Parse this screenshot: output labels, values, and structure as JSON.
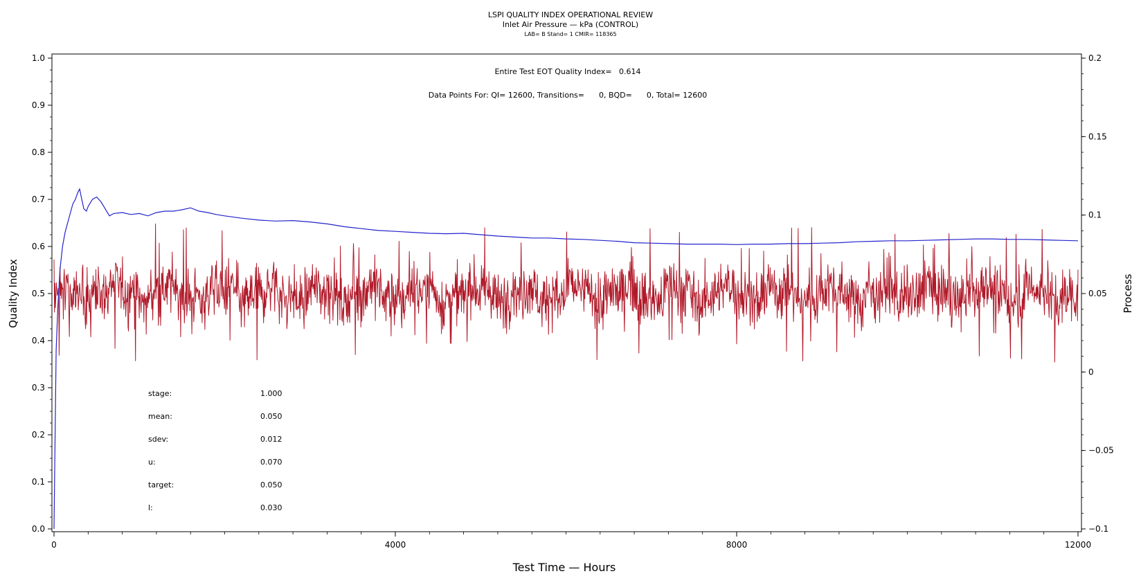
{
  "chart_data": {
    "type": "line",
    "title": "LSPI QUALITY INDEX OPERATIONAL REVIEW",
    "subtitle": "Inlet Air Pressure — kPa (CONTROL)",
    "subtitle2": "LAB= B Stand= 1 CMIR= 118365",
    "xlabel": "Test Time — Hours",
    "ylabel_left": "Quality Index",
    "ylabel_right": "Process",
    "xlim": [
      0,
      12000
    ],
    "ylim_left": [
      0.0,
      1.0
    ],
    "ylim_right": [
      -0.1,
      0.2
    ],
    "x_ticks": [
      0,
      4000,
      8000,
      12000
    ],
    "x_tick_labels": [
      "0",
      "4000",
      "8000",
      "12000"
    ],
    "y_left_ticks": [
      0.0,
      0.1,
      0.2,
      0.3,
      0.4,
      0.5,
      0.6,
      0.7,
      0.8,
      0.9,
      1.0
    ],
    "y_left_tick_labels": [
      "0.0",
      "0.1",
      "0.2",
      "0.3",
      "0.4",
      "0.5",
      "0.6",
      "0.7",
      "0.8",
      "0.9",
      "1.0"
    ],
    "y_right_ticks": [
      -0.1,
      -0.05,
      0,
      0.05,
      0.1,
      0.15,
      0.2
    ],
    "y_right_tick_labels": [
      "−0.1",
      "−0.05",
      "0",
      "0.05",
      "0.1",
      "0.15",
      "0.2"
    ],
    "annotations": {
      "eot": "Entire Test EOT Quality Index=   0.614",
      "data_points": "Data Points For: QI= 12600, Transitions=      0, BQD=      0, Total= 12600"
    },
    "stats": [
      {
        "label": "stage:",
        "value": "1.000"
      },
      {
        "label": "mean:",
        "value": "0.050"
      },
      {
        "label": "sdev:",
        "value": "0.012"
      },
      {
        "label": "u:",
        "value": "0.070"
      },
      {
        "label": "target:",
        "value": "0.050"
      },
      {
        "label": "l:",
        "value": "0.030"
      }
    ],
    "series": [
      {
        "axis": "left",
        "color": "#2222cc",
        "x": [
          0,
          10,
          25,
          45,
          70,
          100,
          130,
          160,
          190,
          220,
          250,
          280,
          300,
          320,
          350,
          380,
          400,
          450,
          500,
          550,
          600,
          650,
          700,
          800,
          900,
          1000,
          1100,
          1200,
          1300,
          1400,
          1500,
          1600,
          1700,
          1800,
          1900,
          2000,
          2200,
          2400,
          2600,
          2800,
          3000,
          3200,
          3400,
          3600,
          3800,
          4000,
          4200,
          4400,
          4600,
          4800,
          5000,
          5200,
          5400,
          5600,
          5800,
          6000,
          6200,
          6400,
          6600,
          6800,
          7000,
          7200,
          7400,
          7600,
          7800,
          8000,
          8200,
          8400,
          8600,
          8800,
          9000,
          9200,
          9400,
          9600,
          9800,
          10000,
          10200,
          10400,
          10600,
          10800,
          11000,
          11200,
          11400,
          11600,
          11800,
          12000
        ],
        "values": [
          0.0,
          0.15,
          0.38,
          0.47,
          0.55,
          0.6,
          0.63,
          0.65,
          0.67,
          0.69,
          0.7,
          0.715,
          0.722,
          0.705,
          0.68,
          0.675,
          0.685,
          0.7,
          0.705,
          0.695,
          0.68,
          0.665,
          0.67,
          0.672,
          0.668,
          0.67,
          0.665,
          0.672,
          0.675,
          0.675,
          0.678,
          0.682,
          0.675,
          0.672,
          0.668,
          0.665,
          0.66,
          0.656,
          0.654,
          0.655,
          0.652,
          0.648,
          0.642,
          0.638,
          0.634,
          0.632,
          0.63,
          0.628,
          0.627,
          0.628,
          0.625,
          0.622,
          0.62,
          0.618,
          0.618,
          0.616,
          0.615,
          0.613,
          0.611,
          0.608,
          0.607,
          0.606,
          0.605,
          0.605,
          0.605,
          0.604,
          0.605,
          0.605,
          0.606,
          0.606,
          0.607,
          0.608,
          0.61,
          0.611,
          0.612,
          0.612,
          0.613,
          0.614,
          0.615,
          0.616,
          0.616,
          0.615,
          0.615,
          0.614,
          0.613,
          0.612
        ]
      },
      {
        "axis": "right",
        "color": "#b01828",
        "description_note": "",
        "x_start": 0,
        "x_end": 12000,
        "mean": 0.05,
        "sdev": 0.012,
        "min": 0.0,
        "max": 0.095
      }
    ]
  }
}
